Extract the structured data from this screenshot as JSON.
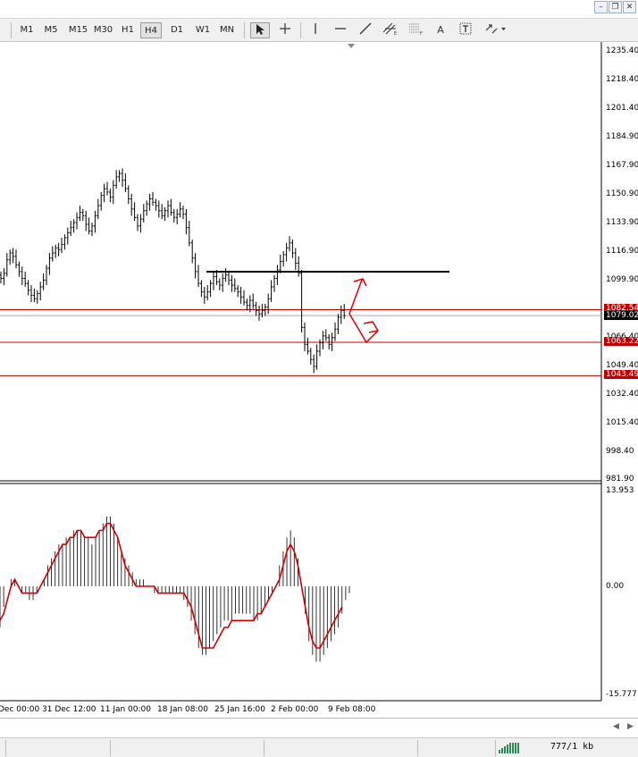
{
  "window": {
    "minimize_icon": "minimize-icon",
    "restore_icon": "restore-icon",
    "close_icon": "close-icon"
  },
  "toolbar": {
    "timeframes": [
      "M1",
      "M5",
      "M15",
      "M30",
      "H1",
      "H4",
      "D1",
      "W1",
      "MN"
    ],
    "active_timeframe": "H4",
    "tools": [
      "cursor-arrow-icon",
      "crosshair-icon",
      "vertical-line-icon",
      "horizontal-line-icon",
      "trendline-icon",
      "equidistant-channel-icon",
      "fibonacci-icon",
      "text-icon",
      "text-label-icon",
      "arrows-menu-icon"
    ]
  },
  "price_axis": [
    "1235.40",
    "1218.40",
    "1201.40",
    "1184.90",
    "1167.90",
    "1150.90",
    "1133.90",
    "1116.90",
    "1099.90",
    "1066.40",
    "1049.40",
    "1032.40",
    "1015.40",
    "998.40",
    "981.90"
  ],
  "horizontal_levels": [
    {
      "label": "1082.54",
      "color": "#c00000"
    },
    {
      "label": "1079.02",
      "color": "#000000",
      "current": true
    },
    {
      "label": "1063.22",
      "color": "#c00000"
    },
    {
      "label": "1043.49",
      "color": "#c00000"
    }
  ],
  "indicator_axis": {
    "top": "13.953",
    "mid": "0.00",
    "bottom": "-15.777"
  },
  "time_axis": [
    "Dec 00:00",
    "31 Dec 12:00",
    "11 Jan 00:00",
    "18 Jan 08:00",
    "25 Jan 16:00",
    "2 Feb 00:00",
    "9 Feb 08:00"
  ],
  "status": {
    "traffic": "777/1 kb"
  },
  "chart_data": {
    "type": "bar",
    "title": "",
    "ylim": [
      981.9,
      1235.4
    ],
    "closes": [
      1101,
      1104,
      1112,
      1116,
      1114,
      1109,
      1105,
      1101,
      1098,
      1094,
      1091,
      1089,
      1092,
      1096,
      1100,
      1107,
      1113,
      1116,
      1119,
      1118,
      1121,
      1125,
      1128,
      1131,
      1134,
      1137,
      1140,
      1138,
      1133,
      1129,
      1132,
      1138,
      1144,
      1150,
      1154,
      1152,
      1149,
      1156,
      1161,
      1163,
      1159,
      1154,
      1148,
      1142,
      1137,
      1132,
      1136,
      1141,
      1145,
      1148,
      1146,
      1144,
      1141,
      1138,
      1141,
      1144,
      1140,
      1137,
      1139,
      1142,
      1139,
      1131,
      1122,
      1113,
      1105,
      1098,
      1093,
      1090,
      1093,
      1098,
      1102,
      1099,
      1097,
      1101,
      1103,
      1100,
      1097,
      1095,
      1093,
      1090,
      1087,
      1085,
      1088,
      1085,
      1082,
      1080,
      1082,
      1084,
      1089,
      1096,
      1101,
      1106,
      1111,
      1115,
      1119,
      1122,
      1116,
      1110,
      1104,
      1072,
      1062,
      1058,
      1053,
      1049,
      1058,
      1063,
      1067,
      1066,
      1062,
      1066,
      1071,
      1078,
      1082,
      1079
    ],
    "macd_histogram": [
      -6,
      -3,
      0,
      1,
      1,
      0,
      -1,
      -1,
      -2,
      -2,
      -1,
      0,
      1,
      3,
      4,
      5,
      6,
      6,
      7,
      7,
      8,
      8,
      8,
      7,
      7,
      6,
      7,
      8,
      9,
      10,
      10,
      9,
      7,
      5,
      4,
      3,
      2,
      1,
      1,
      1,
      0,
      0,
      -1,
      -1,
      -1,
      -1,
      -1,
      -1,
      -1,
      -1,
      -2,
      -3,
      -5,
      -7,
      -9,
      -10,
      -10,
      -9,
      -8,
      -7,
      -6,
      -5,
      -5,
      -5,
      -4,
      -4,
      -4,
      -4,
      -4,
      -5,
      -5,
      -4,
      -3,
      -2,
      -1,
      0,
      3,
      5,
      7,
      8,
      7,
      4,
      0,
      -4,
      -8,
      -10,
      -11,
      -11,
      -10,
      -9,
      -8,
      -7,
      -6,
      -4,
      -2,
      -1
    ],
    "macd_signal": [
      -5,
      -4,
      -2,
      0,
      1,
      0,
      -1,
      -1,
      -1,
      -1,
      -1,
      0,
      1,
      2,
      3,
      4,
      5,
      6,
      6,
      7,
      7,
      8,
      8,
      7,
      7,
      7,
      7,
      8,
      8,
      9,
      9,
      8,
      7,
      5,
      3,
      2,
      1,
      0,
      0,
      0,
      0,
      0,
      0,
      -1,
      -1,
      -1,
      -1,
      -1,
      -1,
      -1,
      -1,
      -2,
      -3,
      -5,
      -7,
      -9,
      -9,
      -9,
      -9,
      -8,
      -7,
      -6,
      -6,
      -5,
      -5,
      -5,
      -5,
      -5,
      -5,
      -5,
      -4,
      -4,
      -3,
      -2,
      -1,
      0,
      1,
      3,
      5,
      6,
      5,
      3,
      0,
      -3,
      -6,
      -8,
      -9,
      -9,
      -8,
      -7,
      -6,
      -5,
      -4,
      -3
    ]
  }
}
